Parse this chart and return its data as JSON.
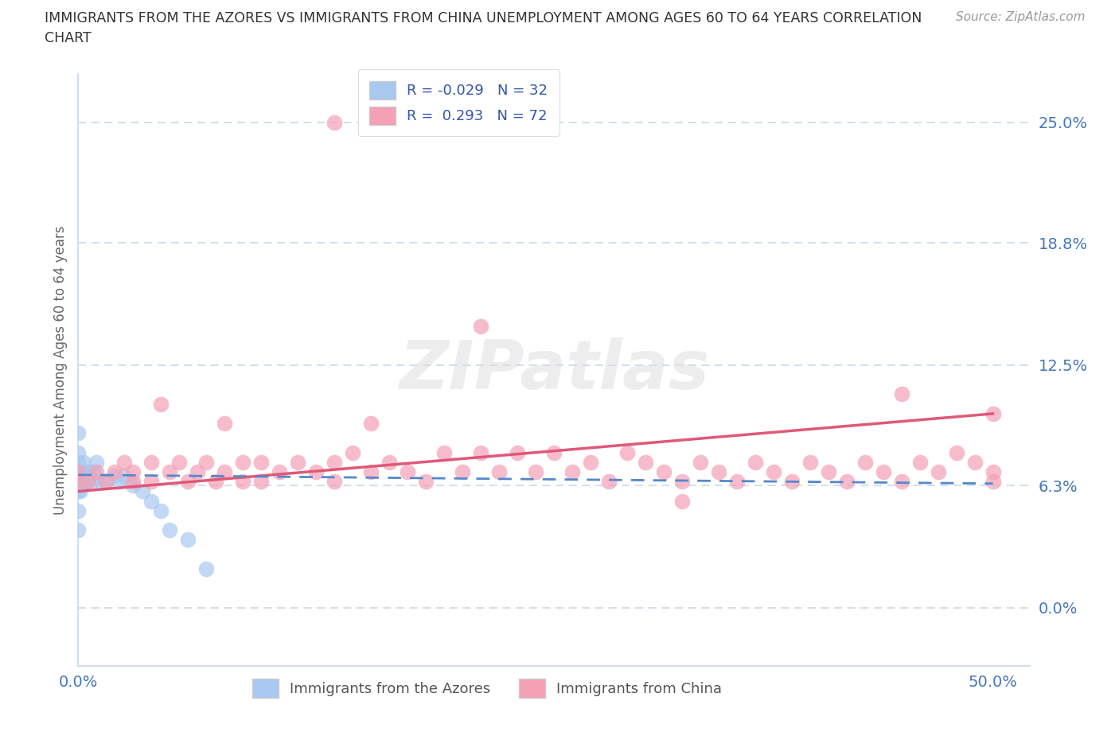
{
  "title_line1": "IMMIGRANTS FROM THE AZORES VS IMMIGRANTS FROM CHINA UNEMPLOYMENT AMONG AGES 60 TO 64 YEARS CORRELATION",
  "title_line2": "CHART",
  "source": "Source: ZipAtlas.com",
  "ylabel": "Unemployment Among Ages 60 to 64 years",
  "xlim": [
    0.0,
    0.52
  ],
  "ylim": [
    -0.03,
    0.275
  ],
  "ytick_vals": [
    0.0,
    0.063,
    0.125,
    0.188,
    0.25
  ],
  "ytick_labels": [
    "0.0%",
    "6.3%",
    "12.5%",
    "18.8%",
    "25.0%"
  ],
  "xtick_vals": [
    0.0,
    0.1,
    0.2,
    0.3,
    0.4,
    0.5
  ],
  "xtick_labels_show": [
    "0.0%",
    "",
    "",
    "",
    "",
    "50.0%"
  ],
  "series1_label": "Immigrants from the Azores",
  "series2_label": "Immigrants from China",
  "series1_R": -0.029,
  "series1_N": 32,
  "series2_R": 0.293,
  "series2_N": 72,
  "series1_color": "#a8c8f0",
  "series2_color": "#f4a0b5",
  "series1_line_color": "#5588cc",
  "series2_line_color": "#e05878",
  "watermark_color": "#dddddd",
  "background_color": "#ffffff",
  "grid_color": "#c8d8ee",
  "tick_label_color": "#4477bb",
  "title_color": "#333333",
  "source_color": "#999999",
  "legend_text_color": "#3355aa",
  "series1_x": [
    0.0,
    0.0,
    0.0,
    0.0,
    0.0,
    0.0,
    0.0,
    0.0,
    0.001,
    0.001,
    0.002,
    0.003,
    0.003,
    0.004,
    0.005,
    0.005,
    0.006,
    0.007,
    0.008,
    0.01,
    0.012,
    0.015,
    0.02,
    0.022,
    0.025,
    0.03,
    0.035,
    0.04,
    0.045,
    0.05,
    0.06,
    0.07
  ],
  "series1_y": [
    0.04,
    0.05,
    0.06,
    0.065,
    0.07,
    0.075,
    0.08,
    0.09,
    0.06,
    0.07,
    0.065,
    0.07,
    0.075,
    0.065,
    0.07,
    0.065,
    0.068,
    0.065,
    0.07,
    0.075,
    0.065,
    0.065,
    0.068,
    0.065,
    0.068,
    0.063,
    0.06,
    0.055,
    0.05,
    0.04,
    0.035,
    0.02
  ],
  "series2_x": [
    0.0,
    0.0,
    0.005,
    0.01,
    0.015,
    0.02,
    0.025,
    0.03,
    0.03,
    0.04,
    0.04,
    0.045,
    0.05,
    0.055,
    0.06,
    0.065,
    0.07,
    0.075,
    0.08,
    0.09,
    0.09,
    0.1,
    0.1,
    0.11,
    0.12,
    0.13,
    0.14,
    0.14,
    0.15,
    0.16,
    0.17,
    0.18,
    0.19,
    0.2,
    0.21,
    0.22,
    0.23,
    0.24,
    0.25,
    0.26,
    0.27,
    0.28,
    0.29,
    0.3,
    0.31,
    0.32,
    0.33,
    0.34,
    0.35,
    0.36,
    0.37,
    0.38,
    0.39,
    0.4,
    0.41,
    0.42,
    0.43,
    0.44,
    0.45,
    0.46,
    0.47,
    0.48,
    0.49,
    0.5,
    0.5,
    0.5,
    0.14,
    0.22,
    0.33,
    0.45,
    0.08,
    0.16
  ],
  "series2_y": [
    0.065,
    0.07,
    0.065,
    0.07,
    0.065,
    0.07,
    0.075,
    0.065,
    0.07,
    0.065,
    0.075,
    0.105,
    0.07,
    0.075,
    0.065,
    0.07,
    0.075,
    0.065,
    0.07,
    0.075,
    0.065,
    0.075,
    0.065,
    0.07,
    0.075,
    0.07,
    0.065,
    0.075,
    0.08,
    0.07,
    0.075,
    0.07,
    0.065,
    0.08,
    0.07,
    0.08,
    0.07,
    0.08,
    0.07,
    0.08,
    0.07,
    0.075,
    0.065,
    0.08,
    0.075,
    0.07,
    0.065,
    0.075,
    0.07,
    0.065,
    0.075,
    0.07,
    0.065,
    0.075,
    0.07,
    0.065,
    0.075,
    0.07,
    0.065,
    0.075,
    0.07,
    0.08,
    0.075,
    0.1,
    0.065,
    0.07,
    0.25,
    0.145,
    0.055,
    0.11,
    0.095,
    0.095
  ]
}
